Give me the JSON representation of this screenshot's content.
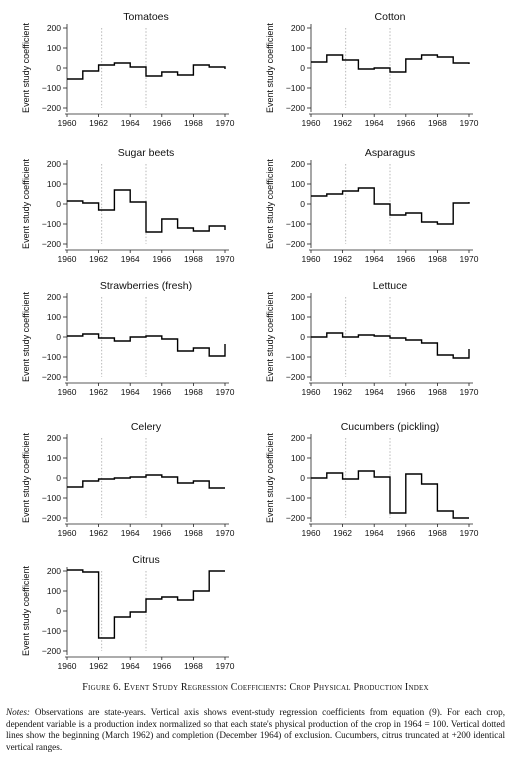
{
  "figure_caption": "Figure 6. Event Study Regression Coefficients: Crop Physical Production Index",
  "notes_label": "Notes:",
  "notes_text": " Observations are state-years. Vertical axis shows event-study regression coefficients from equation (9). For each crop, dependent variable is a production index normalized so that each state's physical production of the crop in 1964 = 100. Vertical dotted lines show the beginning (March 1962) and completion (December 1964) of exclusion. Cucumbers, citrus truncated at +200 identical vertical ranges.",
  "chart_data": [
    {
      "type": "line",
      "step": true,
      "title": "Tomatoes",
      "ylabel": "Event study coefficient",
      "x": [
        1960,
        1961,
        1962,
        1963,
        1964,
        1965,
        1966,
        1967,
        1968,
        1969,
        1970
      ],
      "y": [
        -55,
        -15,
        15,
        25,
        5,
        -40,
        -20,
        -35,
        15,
        5,
        -5
      ],
      "xticks": [
        1960,
        1962,
        1964,
        1966,
        1968,
        1970
      ],
      "yticks": [
        200,
        100,
        0,
        -100,
        -200
      ],
      "xlim": [
        1960,
        1970
      ],
      "ylim": [
        -200,
        200
      ],
      "vlines": [
        1962.2,
        1965.0
      ]
    },
    {
      "type": "line",
      "step": true,
      "title": "Cotton",
      "ylabel": "Event study coefficient",
      "x": [
        1960,
        1961,
        1962,
        1963,
        1964,
        1965,
        1966,
        1967,
        1968,
        1969,
        1970
      ],
      "y": [
        30,
        65,
        40,
        -5,
        0,
        -20,
        45,
        65,
        55,
        25,
        20
      ],
      "xticks": [
        1960,
        1962,
        1964,
        1966,
        1968,
        1970
      ],
      "yticks": [
        200,
        100,
        0,
        -100,
        -200
      ],
      "xlim": [
        1960,
        1970
      ],
      "ylim": [
        -200,
        200
      ],
      "vlines": [
        1962.2,
        1965.0
      ]
    },
    {
      "type": "line",
      "step": true,
      "title": "Sugar beets",
      "ylabel": "Event study coefficient",
      "x": [
        1960,
        1961,
        1962,
        1963,
        1964,
        1965,
        1966,
        1967,
        1968,
        1969,
        1970
      ],
      "y": [
        15,
        5,
        -30,
        70,
        10,
        -140,
        -75,
        -120,
        -135,
        -110,
        -130
      ],
      "xticks": [
        1960,
        1962,
        1964,
        1966,
        1968,
        1970
      ],
      "yticks": [
        200,
        100,
        0,
        -100,
        -200
      ],
      "xlim": [
        1960,
        1970
      ],
      "ylim": [
        -200,
        200
      ],
      "vlines": [
        1962.2,
        1965.0
      ]
    },
    {
      "type": "line",
      "step": true,
      "title": "Asparagus",
      "ylabel": "Event study coefficient",
      "x": [
        1960,
        1961,
        1962,
        1963,
        1964,
        1965,
        1966,
        1967,
        1968,
        1969,
        1970
      ],
      "y": [
        40,
        50,
        65,
        80,
        0,
        -55,
        -45,
        -90,
        -100,
        5,
        10
      ],
      "xticks": [
        1960,
        1962,
        1964,
        1966,
        1968,
        1970
      ],
      "yticks": [
        200,
        100,
        0,
        -100,
        -200
      ],
      "xlim": [
        1960,
        1970
      ],
      "ylim": [
        -200,
        200
      ],
      "vlines": [
        1962.2,
        1965.0
      ]
    },
    {
      "type": "line",
      "step": true,
      "title": "Strawberries (fresh)",
      "ylabel": "Event study coefficient",
      "x": [
        1960,
        1961,
        1962,
        1963,
        1964,
        1965,
        1966,
        1967,
        1968,
        1969,
        1970
      ],
      "y": [
        5,
        15,
        -5,
        -20,
        0,
        5,
        -10,
        -70,
        -55,
        -95,
        -35
      ],
      "xticks": [
        1960,
        1962,
        1964,
        1966,
        1968,
        1970
      ],
      "yticks": [
        200,
        100,
        0,
        -100,
        -200
      ],
      "xlim": [
        1960,
        1970
      ],
      "ylim": [
        -200,
        200
      ],
      "vlines": [
        1962.2,
        1965.0
      ]
    },
    {
      "type": "line",
      "step": true,
      "title": "Lettuce",
      "ylabel": "Event study coefficient",
      "x": [
        1960,
        1961,
        1962,
        1963,
        1964,
        1965,
        1966,
        1967,
        1968,
        1969,
        1970
      ],
      "y": [
        0,
        20,
        0,
        10,
        5,
        -5,
        -15,
        -30,
        -90,
        -105,
        -60
      ],
      "xticks": [
        1960,
        1962,
        1964,
        1966,
        1968,
        1970
      ],
      "yticks": [
        200,
        100,
        0,
        -100,
        -200
      ],
      "xlim": [
        1960,
        1970
      ],
      "ylim": [
        -200,
        200
      ],
      "vlines": [
        1962.2,
        1965.0
      ]
    },
    {
      "type": "line",
      "step": true,
      "title": "Celery",
      "ylabel": "Event study coefficient",
      "x": [
        1960,
        1961,
        1962,
        1963,
        1964,
        1965,
        1966,
        1967,
        1968,
        1969,
        1970
      ],
      "y": [
        -45,
        -15,
        -5,
        0,
        5,
        15,
        5,
        -25,
        -15,
        -50,
        -50
      ],
      "xticks": [
        1960,
        1962,
        1964,
        1966,
        1968,
        1970
      ],
      "yticks": [
        200,
        100,
        0,
        -100,
        -200
      ],
      "xlim": [
        1960,
        1970
      ],
      "ylim": [
        -200,
        200
      ],
      "vlines": [
        1962.2,
        1965.0
      ]
    },
    {
      "type": "line",
      "step": true,
      "title": "Cucumbers (pickling)",
      "ylabel": "Event study coefficient",
      "x": [
        1960,
        1961,
        1962,
        1963,
        1964,
        1965,
        1966,
        1967,
        1968,
        1969
      ],
      "y": [
        0,
        25,
        -5,
        35,
        5,
        -175,
        20,
        -30,
        -165,
        -200
      ],
      "xticks": [
        1960,
        1962,
        1964,
        1966,
        1968,
        1970
      ],
      "yticks": [
        200,
        100,
        0,
        -100,
        -200
      ],
      "xlim": [
        1960,
        1970
      ],
      "ylim": [
        -200,
        200
      ],
      "vlines": [
        1962.2,
        1965.0
      ]
    },
    {
      "type": "line",
      "step": true,
      "title": "Citrus",
      "ylabel": "Event study coefficient",
      "x": [
        1960,
        1961,
        1962,
        1963,
        1964,
        1965,
        1966,
        1967,
        1968,
        1969
      ],
      "y": [
        205,
        195,
        -135,
        -30,
        -5,
        60,
        70,
        55,
        100,
        200
      ],
      "xticks": [
        1960,
        1962,
        1964,
        1966,
        1968,
        1970
      ],
      "yticks": [
        200,
        100,
        0,
        -100,
        -200
      ],
      "xlim": [
        1960,
        1970
      ],
      "ylim": [
        -200,
        200
      ],
      "vlines": [
        1962.2,
        1965.0
      ]
    }
  ]
}
